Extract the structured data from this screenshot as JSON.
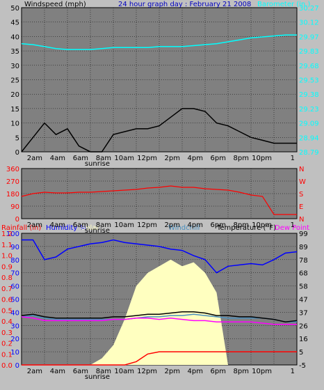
{
  "chart_data": [
    {
      "type": "line",
      "title": "24 hour graph day : February 21 2008",
      "ylabel_left": "Windspeed (mph)",
      "ylabel_right": "Barometer (in.)",
      "x_ticks": [
        "2am",
        "4am",
        "6am",
        "8am",
        "10am",
        "12pm",
        "2pm",
        "4pm",
        "6pm",
        "8pm",
        "10pm",
        "1"
      ],
      "x_subticks": [
        "sunrise"
      ],
      "ylim_left": [
        0,
        50
      ],
      "y_ticks_left": [
        "50",
        "45",
        "40",
        "35",
        "30",
        "25",
        "20",
        "15",
        "10",
        "5",
        "0"
      ],
      "ylim_right": [
        28.79,
        30.27
      ],
      "y_ticks_right": [
        "30.27",
        "30.12",
        "29.97",
        "29.83",
        "29.68",
        "29.53",
        "29.38",
        "29.23",
        "29.09",
        "28.94",
        "28.79"
      ],
      "grid": true,
      "x_hours": [
        0,
        1,
        2,
        3,
        4,
        5,
        6,
        7,
        8,
        9,
        10,
        11,
        12,
        13,
        14,
        15,
        16,
        17,
        18,
        19,
        20,
        21,
        22,
        23,
        24
      ],
      "series": [
        {
          "name": "Windspeed (mph)",
          "color": "#000000",
          "values": [
            0,
            5,
            10,
            6,
            8,
            2,
            0,
            0,
            6,
            7,
            8,
            8,
            9,
            12,
            15,
            15,
            14,
            10,
            9,
            7,
            5,
            4,
            3,
            3,
            3
          ]
        },
        {
          "name": "Barometer (in.)",
          "color": "#00ffff",
          "axis": "right",
          "values": [
            29.9,
            29.89,
            29.87,
            29.85,
            29.84,
            29.84,
            29.84,
            29.85,
            29.86,
            29.86,
            29.86,
            29.86,
            29.87,
            29.87,
            29.87,
            29.88,
            29.89,
            29.9,
            29.92,
            29.94,
            29.96,
            29.97,
            29.98,
            29.99,
            29.99
          ]
        }
      ]
    },
    {
      "type": "line",
      "ylim": [
        0,
        360
      ],
      "y_ticks_left": [
        "360",
        "270",
        "180",
        "90",
        "0"
      ],
      "y_ticks_right": [
        "N",
        "W",
        "S",
        "E",
        "N"
      ],
      "x_ticks": [
        "2am",
        "4am",
        "6am",
        "8am",
        "10am",
        "12pm",
        "2pm",
        "4pm",
        "6pm",
        "8pm",
        "10pm",
        "1"
      ],
      "x_subticks": [
        "sunrise"
      ],
      "grid": true,
      "x_hours": [
        0,
        1,
        2,
        3,
        4,
        5,
        6,
        7,
        8,
        9,
        10,
        11,
        12,
        13,
        14,
        15,
        16,
        17,
        18,
        19,
        20,
        21,
        22,
        23,
        24
      ],
      "series": [
        {
          "name": "Wind Direction",
          "color": "#ff0000",
          "values": [
            160,
            180,
            190,
            185,
            185,
            190,
            190,
            195,
            200,
            205,
            210,
            220,
            225,
            235,
            225,
            225,
            215,
            210,
            205,
            190,
            170,
            160,
            30,
            30,
            30
          ]
        }
      ]
    },
    {
      "type": "area",
      "legend": [
        "Rainfall (in)",
        "Humidity %",
        "Solar",
        "Windchill",
        "Temperature (°F)",
        "Dew Point"
      ],
      "x_ticks": [
        "2am",
        "4am",
        "6am",
        "8am",
        "10am",
        "12pm",
        "2pm",
        "4pm",
        "6pm",
        "8pm",
        "10pm",
        "1"
      ],
      "x_subticks": [
        "sunrise"
      ],
      "ylim_rain": [
        0,
        1.2
      ],
      "y_ticks_rain": [
        "1.2",
        "1.1",
        "1.0",
        "0.9",
        "0.8",
        "0.7",
        "0.6",
        "0.5",
        "0.4",
        "0.3",
        "0.2",
        "0.1",
        "0.0"
      ],
      "ylim_humidity": [
        0,
        100
      ],
      "y_ticks_humidity": [
        "100",
        "90",
        "80",
        "70",
        "60",
        "50",
        "40",
        "30",
        "20",
        "10",
        "0"
      ],
      "ylim_temp": [
        -5,
        99
      ],
      "y_ticks_temp": [
        "99",
        "89",
        "78",
        "68",
        "58",
        "47",
        "37",
        "26",
        "16",
        "5",
        "-5"
      ],
      "grid": true,
      "x_hours": [
        0,
        1,
        2,
        3,
        4,
        5,
        6,
        7,
        8,
        9,
        10,
        11,
        12,
        13,
        14,
        15,
        16,
        17,
        18,
        19,
        20,
        21,
        22,
        23,
        24
      ],
      "series": [
        {
          "name": "Humidity %",
          "color": "#0000ff",
          "values": [
            95,
            95,
            80,
            82,
            88,
            90,
            92,
            93,
            95,
            93,
            92,
            91,
            90,
            88,
            87,
            83,
            80,
            70,
            75,
            76,
            77,
            76,
            80,
            85,
            86
          ]
        },
        {
          "name": "Solar",
          "color": "#ffffc0",
          "values": [
            0,
            0,
            0,
            0,
            0,
            0,
            0,
            5,
            15,
            35,
            60,
            70,
            75,
            80,
            75,
            78,
            70,
            55,
            0,
            0,
            0,
            0,
            0,
            0,
            0
          ]
        },
        {
          "name": "Windchill",
          "color": "#4a90c0",
          "values": [
            33,
            34,
            32,
            31,
            31,
            31,
            31,
            31,
            31,
            31,
            32,
            33,
            33,
            34,
            34,
            35,
            34,
            33,
            32,
            32,
            32,
            32,
            31,
            29,
            29
          ]
        },
        {
          "name": "Temperature (°F)",
          "color": "#000000",
          "values": [
            34,
            35,
            33,
            32,
            32,
            32,
            32,
            32,
            33,
            33,
            34,
            35,
            35,
            36,
            37,
            37,
            36,
            34,
            34,
            33,
            33,
            32,
            31,
            29,
            30
          ]
        },
        {
          "name": "Dew Point",
          "color": "#ff00ff",
          "values": [
            33,
            32,
            30,
            30,
            30,
            30,
            30,
            30,
            31,
            31,
            32,
            32,
            31,
            32,
            31,
            30,
            30,
            29,
            29,
            29,
            29,
            28,
            27,
            27,
            27
          ]
        },
        {
          "name": "Rainfall (in)",
          "color": "#ff0000",
          "values": [
            0,
            0,
            0,
            0,
            0,
            0,
            0,
            0,
            0,
            0,
            0.03,
            0.1,
            0.12,
            0.12,
            0.12,
            0.12,
            0.12,
            0.12,
            0.12,
            0.12,
            0.12,
            0.12,
            0.12,
            0.12,
            0.12
          ]
        }
      ]
    }
  ]
}
